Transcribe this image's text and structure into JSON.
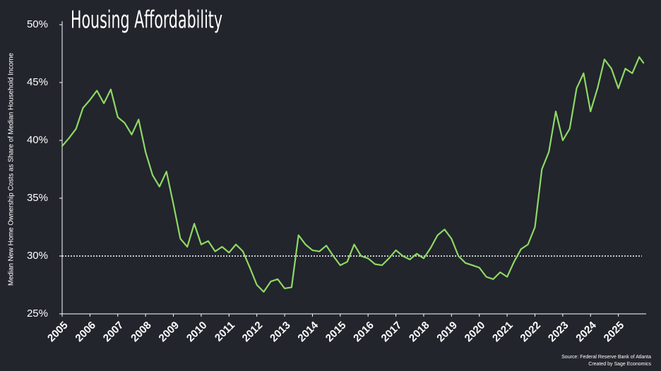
{
  "chart_data": {
    "type": "line",
    "title": "Housing Affordability",
    "ylabel": "Median New Home Ownership Costs as Share of Median Household Income",
    "source": "Source: Federal Reserve Bank of Atlanta",
    "credit": "Created by Sage Economics",
    "color": "#8ed865",
    "reference_line": 30,
    "x": [
      2005.0,
      2005.25,
      2005.5,
      2005.75,
      2006.0,
      2006.25,
      2006.5,
      2006.75,
      2007.0,
      2007.25,
      2007.5,
      2007.75,
      2008.0,
      2008.25,
      2008.5,
      2008.75,
      2009.0,
      2009.25,
      2009.5,
      2009.75,
      2010.0,
      2010.25,
      2010.5,
      2010.75,
      2011.0,
      2011.25,
      2011.5,
      2011.75,
      2012.0,
      2012.25,
      2012.5,
      2012.75,
      2013.0,
      2013.25,
      2013.5,
      2013.75,
      2014.0,
      2014.25,
      2014.5,
      2014.75,
      2015.0,
      2015.25,
      2015.5,
      2015.75,
      2016.0,
      2016.25,
      2016.5,
      2016.75,
      2017.0,
      2017.25,
      2017.5,
      2017.75,
      2018.0,
      2018.25,
      2018.5,
      2018.75,
      2019.0,
      2019.25,
      2019.5,
      2019.75,
      2020.0,
      2020.25,
      2020.5,
      2020.75,
      2021.0,
      2021.25,
      2021.5,
      2021.75,
      2022.0,
      2022.25,
      2022.5,
      2022.75,
      2023.0,
      2023.25,
      2023.5,
      2023.75,
      2024.0,
      2024.25,
      2024.5,
      2024.75,
      2025.0,
      2025.25,
      2025.5,
      2025.75,
      2025.9
    ],
    "values": [
      39.5,
      40.2,
      41,
      42.8,
      43.5,
      44.3,
      43.2,
      44.4,
      42,
      41.5,
      40.5,
      41.8,
      39,
      37,
      36,
      37.3,
      34.5,
      31.5,
      30.8,
      32.8,
      31,
      31.3,
      30.4,
      30.8,
      30.3,
      31,
      30.4,
      29,
      27.5,
      26.9,
      27.8,
      28,
      27.2,
      27.3,
      31.8,
      31,
      30.5,
      30.4,
      30.9,
      30,
      29.2,
      29.5,
      31,
      30,
      29.8,
      29.3,
      29.2,
      29.8,
      30.5,
      30,
      29.7,
      30.2,
      29.8,
      30.7,
      31.8,
      32.3,
      31.5,
      30,
      29.4,
      29.2,
      29,
      28.2,
      28,
      28.6,
      28.2,
      29.5,
      30.6,
      31,
      32.5,
      37.5,
      39,
      42.5,
      40,
      41,
      44.5,
      45.8,
      42.5,
      44.5,
      47,
      46.2,
      44.5,
      46.2,
      45.8,
      47.2,
      46.7
    ],
    "xlim": [
      2005,
      2026
    ],
    "xticks": [
      2005,
      2006,
      2007,
      2008,
      2009,
      2010,
      2011,
      2012,
      2013,
      2014,
      2015,
      2016,
      2017,
      2018,
      2019,
      2020,
      2021,
      2022,
      2023,
      2024,
      2025
    ],
    "ylim": [
      25,
      50
    ],
    "yticks": [
      {
        "value": 25,
        "label": "25%"
      },
      {
        "value": 30,
        "label": "30%"
      },
      {
        "value": 35,
        "label": "35%"
      },
      {
        "value": 40,
        "label": "40%"
      },
      {
        "value": 45,
        "label": "45%"
      },
      {
        "value": 50,
        "label": "50%"
      }
    ]
  }
}
